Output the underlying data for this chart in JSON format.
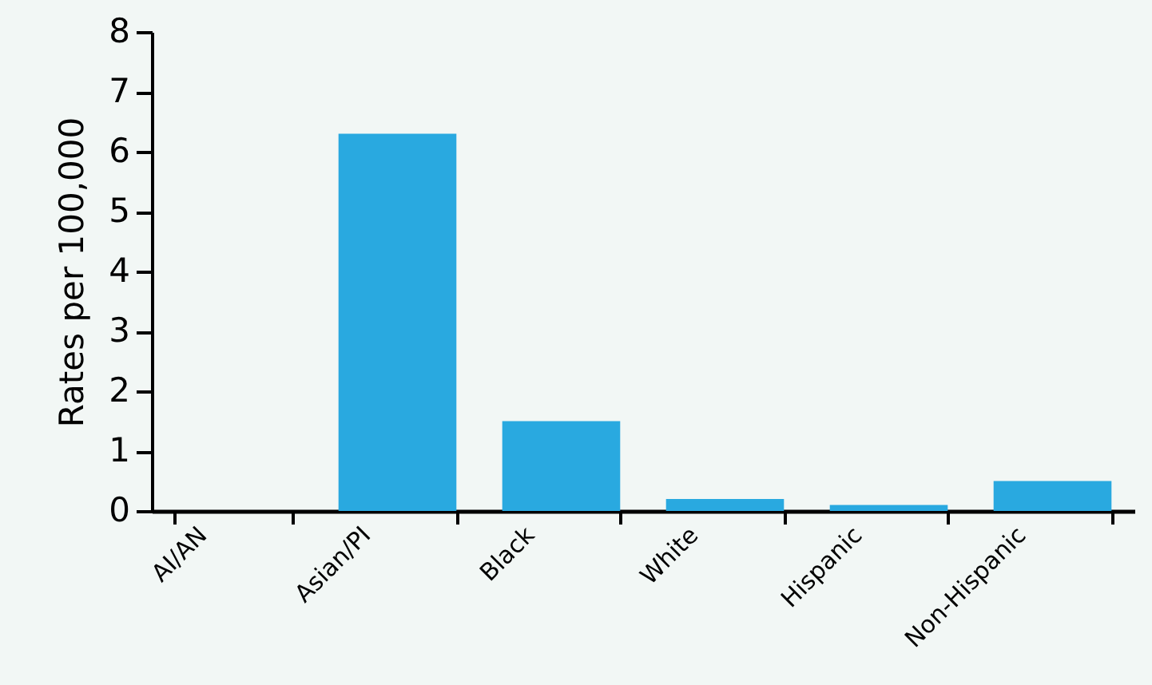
{
  "chart_data": {
    "type": "bar",
    "ylabel": "Rates per 100,000",
    "categories": [
      "AI/AN",
      "Asian/PI",
      "Black",
      "White",
      "Hispanic",
      "Non-Hispanic"
    ],
    "values": [
      0,
      6.3,
      1.5,
      0.2,
      0.1,
      0.5
    ],
    "color": "#29a9e0",
    "ylim": [
      0,
      8
    ],
    "yticks": [
      0,
      1,
      2,
      3,
      4,
      5,
      6,
      7,
      8
    ],
    "grid": false
  }
}
